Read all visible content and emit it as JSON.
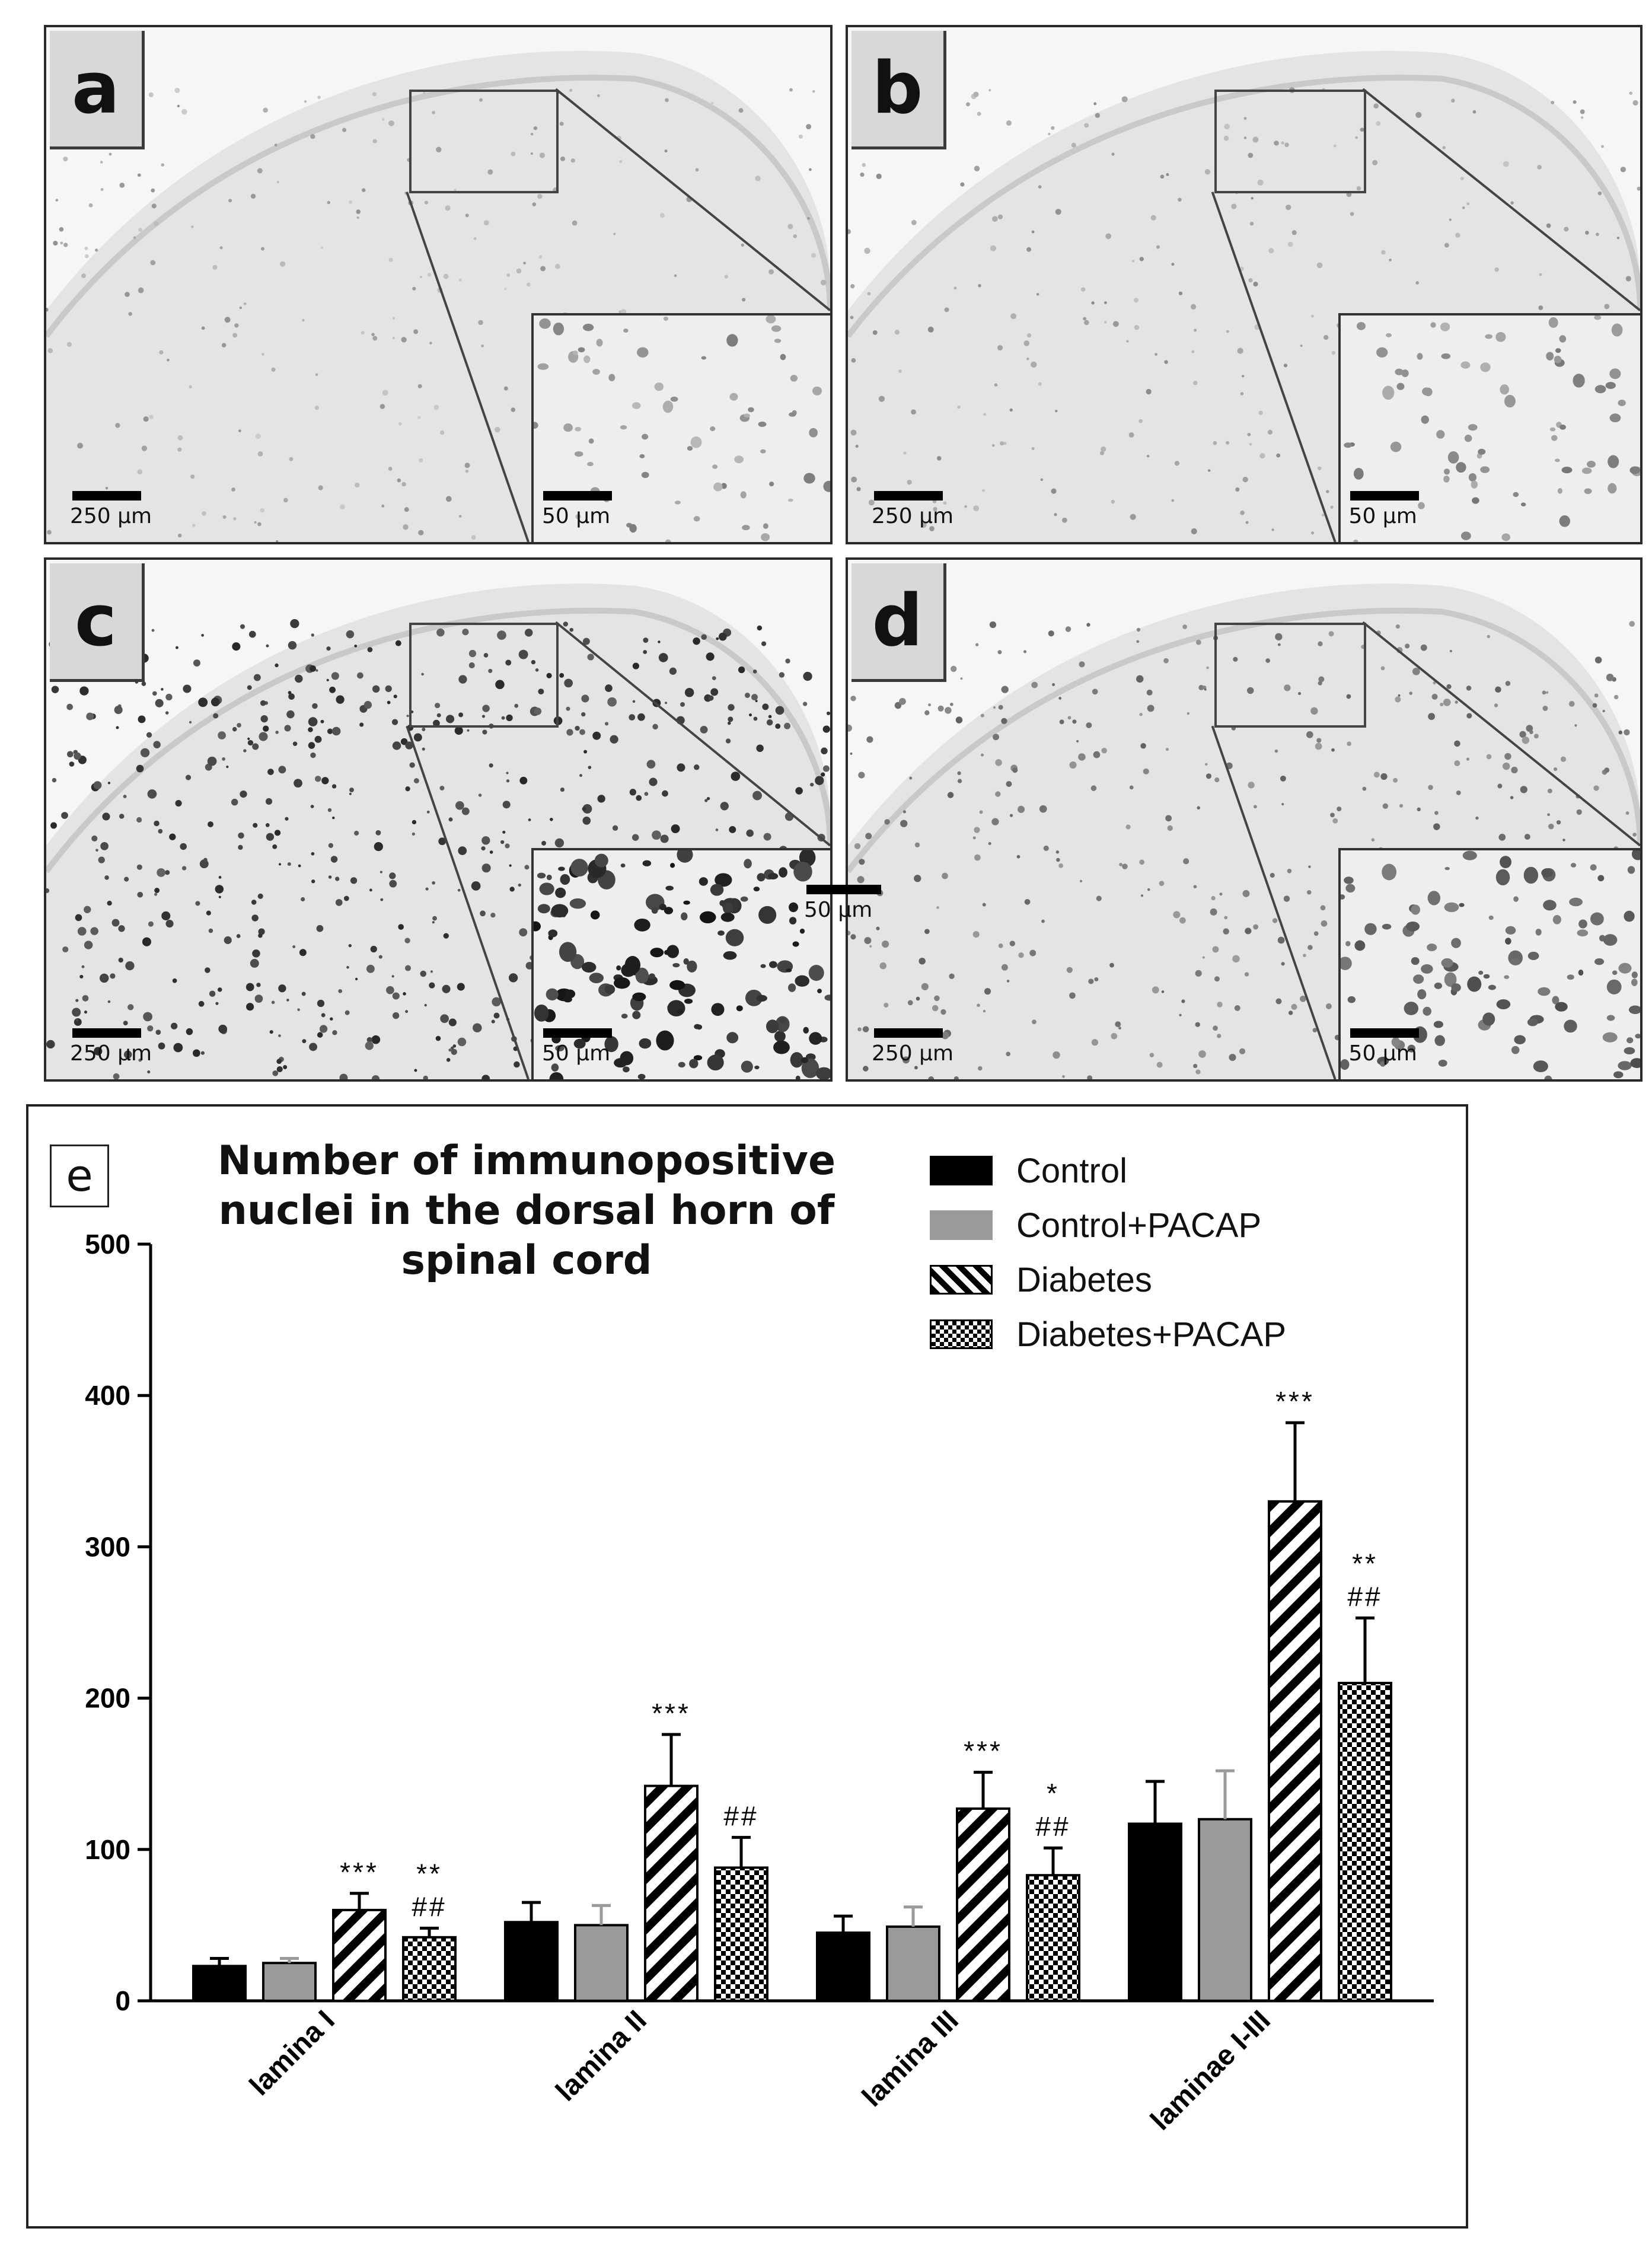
{
  "micrographs": [
    {
      "id": "a",
      "letter": "a",
      "scale_main": "250 µm",
      "scale_inset": "50 µm",
      "density": 0.25
    },
    {
      "id": "b",
      "letter": "b",
      "scale_main": "250 µm",
      "scale_inset": "50 µm",
      "density": 0.3
    },
    {
      "id": "c",
      "letter": "c",
      "scale_main": "250 µm",
      "scale_inset": "50 µm",
      "density": 1.0
    },
    {
      "id": "d",
      "letter": "d",
      "scale_main": "250 µm",
      "scale_inset": "50 µm",
      "density": 0.6
    }
  ],
  "floating_scale_label": "50 µm",
  "panel_e_label": "e",
  "chart_data": {
    "type": "bar",
    "title_lines": [
      "Number of immunopositive",
      "nuclei in the dorsal horn of",
      "spinal cord"
    ],
    "categories": [
      "lamina I",
      "lamina II",
      "lamina III",
      "laminae I-III"
    ],
    "ylim": [
      0,
      500
    ],
    "yticks": [
      "0",
      "100",
      "200",
      "300",
      "400",
      "500"
    ],
    "grid": false,
    "legend_position": "top-right",
    "series": [
      {
        "name": "Control",
        "fill": "solid",
        "color": "#000000",
        "values": [
          23,
          52,
          45,
          117
        ],
        "errors": [
          5,
          13,
          11,
          28
        ],
        "annotations": [
          [],
          [],
          [],
          []
        ]
      },
      {
        "name": "Control+PACAP",
        "fill": "solid",
        "color": "#9a9a9c",
        "values": [
          25,
          50,
          49,
          120
        ],
        "errors": [
          3,
          13,
          13,
          32
        ],
        "annotations": [
          [],
          [],
          [],
          []
        ]
      },
      {
        "name": "Diabetes",
        "fill": "hatch",
        "color": "#000000",
        "values": [
          60,
          142,
          127,
          330
        ],
        "errors": [
          11,
          34,
          24,
          52
        ],
        "annotations": [
          [
            "***"
          ],
          [
            "***"
          ],
          [
            "***"
          ],
          [
            "***"
          ]
        ]
      },
      {
        "name": "Diabetes+PACAP",
        "fill": "checker",
        "color": "#000000",
        "values": [
          42,
          88,
          83,
          210
        ],
        "errors": [
          6,
          20,
          18,
          43
        ],
        "annotations": [
          [
            "**",
            "##"
          ],
          [
            "##"
          ],
          [
            "*",
            "##"
          ],
          [
            "**",
            "##"
          ]
        ]
      }
    ]
  }
}
